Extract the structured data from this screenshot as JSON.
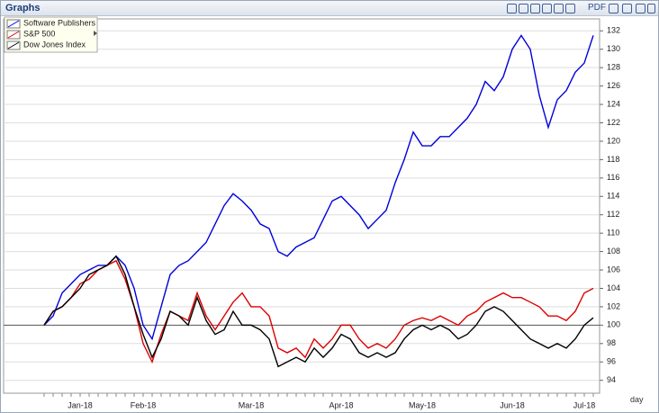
{
  "window": {
    "title": "Graphs",
    "toolbar_label": "PDF",
    "period": "day"
  },
  "chart_data": {
    "type": "line",
    "categories": [
      null,
      null,
      null,
      null,
      "Jan-18",
      null,
      null,
      null,
      null,
      null,
      null,
      "Feb-18",
      null,
      null,
      null,
      null,
      null,
      null,
      null,
      null,
      null,
      null,
      null,
      "Mar-18",
      null,
      null,
      null,
      null,
      null,
      null,
      null,
      null,
      null,
      "Apr-18",
      null,
      null,
      null,
      null,
      null,
      null,
      null,
      null,
      "May-18",
      null,
      null,
      null,
      null,
      null,
      null,
      null,
      null,
      null,
      "Jun-18",
      null,
      null,
      null,
      null,
      null,
      null,
      null,
      "Jul-18",
      null
    ],
    "series": [
      {
        "name": "Software Publishers",
        "color": "#0000dd",
        "values": [
          100,
          101,
          103.5,
          104.5,
          105.5,
          106,
          106.5,
          106.5,
          107.5,
          106.5,
          104,
          100,
          98.5,
          102,
          105.5,
          106.5,
          107,
          108,
          109,
          111,
          113,
          114.3,
          113.5,
          112.5,
          111,
          110.5,
          108,
          107.5,
          108.5,
          109,
          109.5,
          111.5,
          113.5,
          114,
          113,
          112,
          110.5,
          111.5,
          112.5,
          115.5,
          118,
          121,
          119.5,
          119.5,
          120.5,
          120.5,
          121.5,
          122.5,
          124,
          126.5,
          125.5,
          127,
          130,
          131.5,
          130,
          125,
          121.5,
          124.5,
          125.5,
          127.5,
          128.5,
          131.5
        ]
      },
      {
        "name": "S&P 500",
        "color": "#dd0000",
        "values": [
          100,
          101.5,
          102,
          103,
          104.5,
          105,
          106,
          106.5,
          107,
          105,
          102,
          98,
          96,
          99,
          101.5,
          101,
          100.5,
          103.5,
          101,
          99.5,
          101,
          102.5,
          103.5,
          102,
          102,
          101,
          97.5,
          97,
          97.5,
          96.5,
          98.5,
          97.5,
          98.5,
          100,
          100,
          98.5,
          97.5,
          98,
          97.5,
          98.5,
          100,
          100.5,
          100.8,
          100.5,
          101,
          100.5,
          100,
          101,
          101.5,
          102.5,
          103,
          103.5,
          103,
          103,
          102.5,
          102,
          101,
          101,
          100.5,
          101.5,
          103.5,
          104
        ]
      },
      {
        "name": "Dow Jones Index",
        "color": "#000000",
        "values": [
          100,
          101.5,
          102,
          103,
          104,
          105.5,
          106,
          106.5,
          107.5,
          105.5,
          102,
          99,
          96.5,
          98.5,
          101.5,
          101,
          100,
          103,
          100.5,
          99,
          99.5,
          101.5,
          100,
          100,
          99.5,
          98.5,
          95.5,
          96,
          96.5,
          96,
          97.5,
          96.5,
          97.5,
          99,
          98.5,
          97,
          96.5,
          97,
          96.5,
          97,
          98.5,
          99.5,
          100,
          99.5,
          100,
          99.5,
          98.5,
          99,
          100,
          101.5,
          102,
          101.5,
          100.5,
          99.5,
          98.5,
          98,
          97.5,
          98,
          97.5,
          98.5,
          100,
          100.8
        ]
      }
    ],
    "ylim": [
      92.6,
      133.3
    ],
    "yticks": [
      94,
      96,
      98,
      100,
      102,
      104,
      106,
      108,
      110,
      112,
      114,
      116,
      118,
      120,
      122,
      124,
      126,
      128,
      130,
      132
    ],
    "grid": true
  }
}
